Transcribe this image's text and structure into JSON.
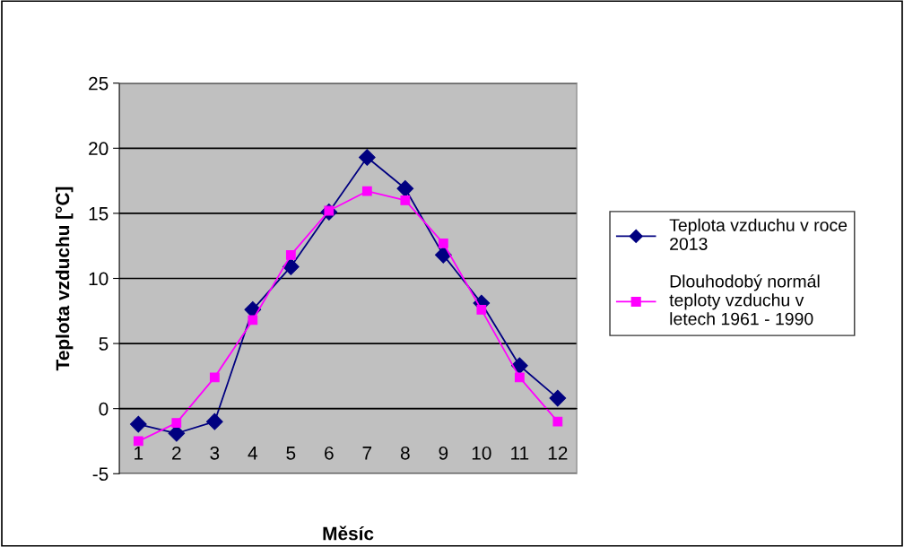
{
  "chart_data": {
    "type": "line",
    "xlabel": "Měsíc",
    "ylabel": "Teplota vzduchu [°C]",
    "categories": [
      "1",
      "2",
      "3",
      "4",
      "5",
      "6",
      "7",
      "8",
      "9",
      "10",
      "11",
      "12"
    ],
    "series": [
      {
        "name": "Teplota vzduchu v roce 2013",
        "color": "#000080",
        "marker": "diamond",
        "values": [
          -1.2,
          -1.9,
          -1.0,
          7.6,
          10.9,
          15.1,
          19.3,
          16.9,
          11.8,
          8.1,
          3.3,
          0.8
        ]
      },
      {
        "name": "Dlouhodobý normál teploty vzduchu v letech 1961 - 1990",
        "color": "#ff00ff",
        "marker": "square",
        "values": [
          -2.5,
          -1.1,
          2.4,
          6.8,
          11.8,
          15.2,
          16.7,
          16.0,
          12.7,
          7.6,
          2.4,
          -1.0
        ]
      }
    ],
    "ylim": [
      -5,
      25
    ],
    "yticks": [
      -5,
      0,
      5,
      10,
      15,
      20,
      25
    ],
    "grid": "y",
    "legend": "right",
    "line_style": "solid"
  }
}
